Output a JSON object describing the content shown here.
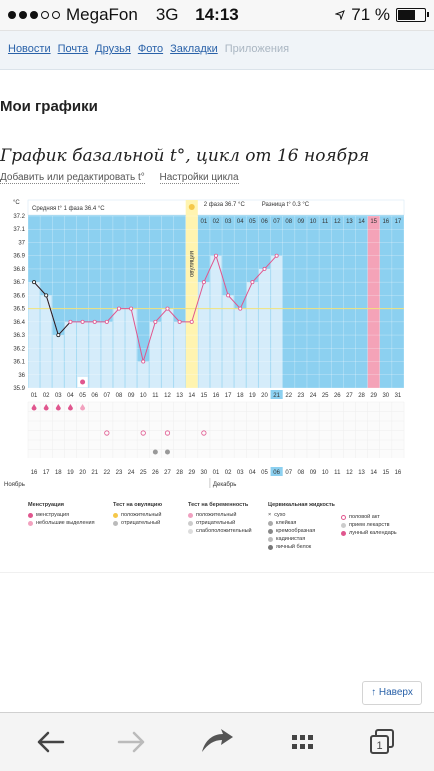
{
  "status_bar": {
    "carrier": "MegaFon",
    "network": "3G",
    "time": "14:13",
    "battery_percent": "71 %",
    "battery_level": 0.71,
    "signal_bars": 3,
    "signal_total": 5
  },
  "nav": {
    "items": [
      "Новости",
      "Почта",
      "Друзья",
      "Фото",
      "Закладки",
      "Приложения"
    ],
    "disabled_item": "Приложения"
  },
  "page_title": "Мои графики",
  "chart_title": "График базальной t°, цикл от 16 ноября",
  "links": {
    "edit": "Добавить или редактировать t°",
    "settings": "Настройки цикла"
  },
  "chart_data": {
    "type": "line",
    "y_unit": "°C",
    "ylim": [
      35.9,
      37.2
    ],
    "y_ticks": [
      "37.2",
      "37.1",
      "37",
      "36.9",
      "36.8",
      "36.7",
      "36.6",
      "36.5",
      "36.4",
      "36.3",
      "36.2",
      "36.1",
      "36",
      "35.9"
    ],
    "phase1_label": "Средняя t° 1 фаза 36.4 °C",
    "phase2_label": "2 фаза 36.7 °C",
    "diff_label": "Разница t° 0.3 °C",
    "ovulation_label": "овуляция",
    "cycle_days": [
      "01",
      "02",
      "03",
      "04",
      "05",
      "06",
      "07",
      "08",
      "09",
      "10",
      "11",
      "12",
      "13",
      "14",
      "15",
      "16",
      "17",
      "18",
      "19",
      "20",
      "21",
      "22",
      "23",
      "24",
      "25",
      "26",
      "27",
      "28",
      "29",
      "30",
      "31"
    ],
    "phase2_days": [
      "01",
      "02",
      "03",
      "04",
      "05",
      "06",
      "07",
      "08",
      "09",
      "10",
      "11",
      "12",
      "13",
      "14",
      "15",
      "16",
      "17"
    ],
    "ovulation_day": 14,
    "current_day": 21,
    "expected_period_day": 29,
    "coverline": 36.5,
    "series": [
      {
        "values": [
          36.7,
          36.6,
          36.3,
          36.4,
          36.4,
          36.4,
          36.4,
          36.5,
          36.5,
          36.1,
          36.4,
          36.5,
          36.4,
          36.4,
          36.7,
          36.9,
          36.6,
          36.5,
          36.7,
          36.8,
          36.9
        ]
      }
    ],
    "filled_days": 21,
    "menstruation_days": 5,
    "sex_days": [
      7,
      10,
      12,
      15
    ],
    "test_days": [
      11,
      12
    ],
    "calendar_dates": [
      "16",
      "17",
      "18",
      "19",
      "20",
      "21",
      "22",
      "23",
      "24",
      "25",
      "26",
      "27",
      "28",
      "29",
      "30",
      "01",
      "02",
      "03",
      "04",
      "05",
      "06",
      "07",
      "08",
      "09",
      "10",
      "11",
      "12",
      "13",
      "14",
      "15",
      "16"
    ],
    "month_start": "Ноябрь",
    "month_second": "Декабрь"
  },
  "legend": {
    "col1": {
      "title": "Менструация",
      "items": [
        "менструация",
        "небольшие выделения"
      ]
    },
    "col2": {
      "title": "Тест на овуляцию",
      "items": [
        "положительный",
        "отрицательный"
      ]
    },
    "col3": {
      "title": "Тест на беременность",
      "items": [
        "положительный",
        "отрицательный",
        "слабоположительный"
      ]
    },
    "col4": {
      "title": "Цервикальная жидкость",
      "items": [
        "сухо",
        "клейкая",
        "кремообразная",
        "кадинистая",
        "яичный белок"
      ]
    },
    "col5": {
      "items": [
        "половой акт",
        "прием лекарств",
        "лунный календарь"
      ]
    }
  },
  "up_button": "↑ Наверх",
  "colors": {
    "accent": "#2a62a9",
    "chart_bg": "#8cd0f0",
    "bar": "#d5ecfa",
    "ovulation": "#fff4b0",
    "period": "#f4a3b8",
    "line": "#e0568e"
  },
  "toolbar_icons": [
    "back-arrow-icon",
    "forward-arrow-icon",
    "share-icon",
    "bookmarks-icon",
    "tabs-icon"
  ]
}
